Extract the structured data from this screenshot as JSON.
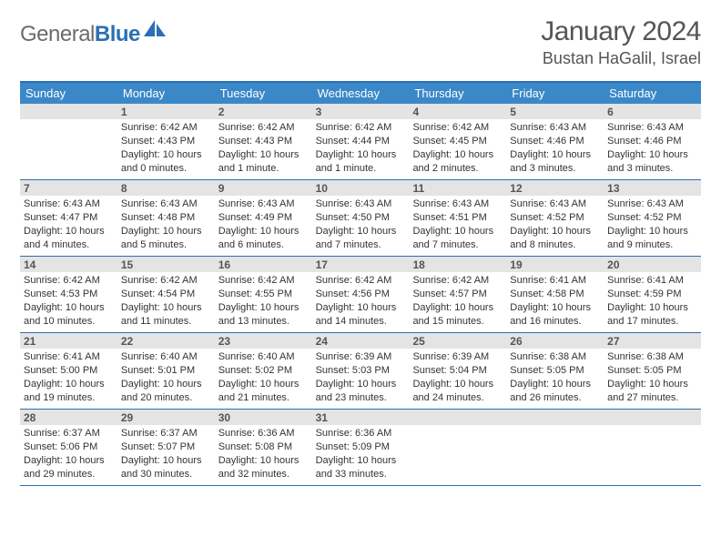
{
  "logo": {
    "text_gray": "General",
    "text_blue": "Blue"
  },
  "title": "January 2024",
  "location": "Bustan HaGalil, Israel",
  "colors": {
    "header_bg": "#3b88c9",
    "rule": "#2a6fb5",
    "daynum_bg": "#e4e4e4",
    "text": "#333333"
  },
  "weekdays": [
    "Sunday",
    "Monday",
    "Tuesday",
    "Wednesday",
    "Thursday",
    "Friday",
    "Saturday"
  ],
  "weeks": [
    [
      {
        "n": "",
        "sunrise": "",
        "sunset": "",
        "daylight": ""
      },
      {
        "n": "1",
        "sunrise": "Sunrise: 6:42 AM",
        "sunset": "Sunset: 4:43 PM",
        "daylight": "Daylight: 10 hours and 0 minutes."
      },
      {
        "n": "2",
        "sunrise": "Sunrise: 6:42 AM",
        "sunset": "Sunset: 4:43 PM",
        "daylight": "Daylight: 10 hours and 1 minute."
      },
      {
        "n": "3",
        "sunrise": "Sunrise: 6:42 AM",
        "sunset": "Sunset: 4:44 PM",
        "daylight": "Daylight: 10 hours and 1 minute."
      },
      {
        "n": "4",
        "sunrise": "Sunrise: 6:42 AM",
        "sunset": "Sunset: 4:45 PM",
        "daylight": "Daylight: 10 hours and 2 minutes."
      },
      {
        "n": "5",
        "sunrise": "Sunrise: 6:43 AM",
        "sunset": "Sunset: 4:46 PM",
        "daylight": "Daylight: 10 hours and 3 minutes."
      },
      {
        "n": "6",
        "sunrise": "Sunrise: 6:43 AM",
        "sunset": "Sunset: 4:46 PM",
        "daylight": "Daylight: 10 hours and 3 minutes."
      }
    ],
    [
      {
        "n": "7",
        "sunrise": "Sunrise: 6:43 AM",
        "sunset": "Sunset: 4:47 PM",
        "daylight": "Daylight: 10 hours and 4 minutes."
      },
      {
        "n": "8",
        "sunrise": "Sunrise: 6:43 AM",
        "sunset": "Sunset: 4:48 PM",
        "daylight": "Daylight: 10 hours and 5 minutes."
      },
      {
        "n": "9",
        "sunrise": "Sunrise: 6:43 AM",
        "sunset": "Sunset: 4:49 PM",
        "daylight": "Daylight: 10 hours and 6 minutes."
      },
      {
        "n": "10",
        "sunrise": "Sunrise: 6:43 AM",
        "sunset": "Sunset: 4:50 PM",
        "daylight": "Daylight: 10 hours and 7 minutes."
      },
      {
        "n": "11",
        "sunrise": "Sunrise: 6:43 AM",
        "sunset": "Sunset: 4:51 PM",
        "daylight": "Daylight: 10 hours and 7 minutes."
      },
      {
        "n": "12",
        "sunrise": "Sunrise: 6:43 AM",
        "sunset": "Sunset: 4:52 PM",
        "daylight": "Daylight: 10 hours and 8 minutes."
      },
      {
        "n": "13",
        "sunrise": "Sunrise: 6:43 AM",
        "sunset": "Sunset: 4:52 PM",
        "daylight": "Daylight: 10 hours and 9 minutes."
      }
    ],
    [
      {
        "n": "14",
        "sunrise": "Sunrise: 6:42 AM",
        "sunset": "Sunset: 4:53 PM",
        "daylight": "Daylight: 10 hours and 10 minutes."
      },
      {
        "n": "15",
        "sunrise": "Sunrise: 6:42 AM",
        "sunset": "Sunset: 4:54 PM",
        "daylight": "Daylight: 10 hours and 11 minutes."
      },
      {
        "n": "16",
        "sunrise": "Sunrise: 6:42 AM",
        "sunset": "Sunset: 4:55 PM",
        "daylight": "Daylight: 10 hours and 13 minutes."
      },
      {
        "n": "17",
        "sunrise": "Sunrise: 6:42 AM",
        "sunset": "Sunset: 4:56 PM",
        "daylight": "Daylight: 10 hours and 14 minutes."
      },
      {
        "n": "18",
        "sunrise": "Sunrise: 6:42 AM",
        "sunset": "Sunset: 4:57 PM",
        "daylight": "Daylight: 10 hours and 15 minutes."
      },
      {
        "n": "19",
        "sunrise": "Sunrise: 6:41 AM",
        "sunset": "Sunset: 4:58 PM",
        "daylight": "Daylight: 10 hours and 16 minutes."
      },
      {
        "n": "20",
        "sunrise": "Sunrise: 6:41 AM",
        "sunset": "Sunset: 4:59 PM",
        "daylight": "Daylight: 10 hours and 17 minutes."
      }
    ],
    [
      {
        "n": "21",
        "sunrise": "Sunrise: 6:41 AM",
        "sunset": "Sunset: 5:00 PM",
        "daylight": "Daylight: 10 hours and 19 minutes."
      },
      {
        "n": "22",
        "sunrise": "Sunrise: 6:40 AM",
        "sunset": "Sunset: 5:01 PM",
        "daylight": "Daylight: 10 hours and 20 minutes."
      },
      {
        "n": "23",
        "sunrise": "Sunrise: 6:40 AM",
        "sunset": "Sunset: 5:02 PM",
        "daylight": "Daylight: 10 hours and 21 minutes."
      },
      {
        "n": "24",
        "sunrise": "Sunrise: 6:39 AM",
        "sunset": "Sunset: 5:03 PM",
        "daylight": "Daylight: 10 hours and 23 minutes."
      },
      {
        "n": "25",
        "sunrise": "Sunrise: 6:39 AM",
        "sunset": "Sunset: 5:04 PM",
        "daylight": "Daylight: 10 hours and 24 minutes."
      },
      {
        "n": "26",
        "sunrise": "Sunrise: 6:38 AM",
        "sunset": "Sunset: 5:05 PM",
        "daylight": "Daylight: 10 hours and 26 minutes."
      },
      {
        "n": "27",
        "sunrise": "Sunrise: 6:38 AM",
        "sunset": "Sunset: 5:05 PM",
        "daylight": "Daylight: 10 hours and 27 minutes."
      }
    ],
    [
      {
        "n": "28",
        "sunrise": "Sunrise: 6:37 AM",
        "sunset": "Sunset: 5:06 PM",
        "daylight": "Daylight: 10 hours and 29 minutes."
      },
      {
        "n": "29",
        "sunrise": "Sunrise: 6:37 AM",
        "sunset": "Sunset: 5:07 PM",
        "daylight": "Daylight: 10 hours and 30 minutes."
      },
      {
        "n": "30",
        "sunrise": "Sunrise: 6:36 AM",
        "sunset": "Sunset: 5:08 PM",
        "daylight": "Daylight: 10 hours and 32 minutes."
      },
      {
        "n": "31",
        "sunrise": "Sunrise: 6:36 AM",
        "sunset": "Sunset: 5:09 PM",
        "daylight": "Daylight: 10 hours and 33 minutes."
      },
      {
        "n": "",
        "sunrise": "",
        "sunset": "",
        "daylight": ""
      },
      {
        "n": "",
        "sunrise": "",
        "sunset": "",
        "daylight": ""
      },
      {
        "n": "",
        "sunrise": "",
        "sunset": "",
        "daylight": ""
      }
    ]
  ]
}
